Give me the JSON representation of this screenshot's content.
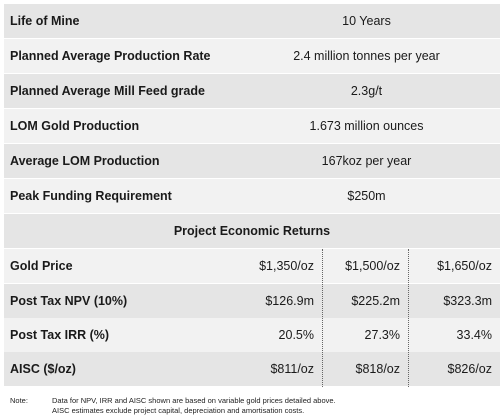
{
  "summary": {
    "rows": [
      [
        "Life of Mine",
        "10 Years"
      ],
      [
        "Planned Average Production Rate",
        "2.4 million tonnes per year"
      ],
      [
        "Planned Average Mill Feed grade",
        "2.3g/t"
      ],
      [
        "LOM Gold Production",
        "1.673 million ounces"
      ],
      [
        "Average LOM Production",
        "167koz per year"
      ],
      [
        "Peak Funding Requirement",
        "$250m"
      ]
    ]
  },
  "economics": {
    "title": "Project Economic Returns",
    "rows": [
      [
        "Gold Price",
        "$1,350/oz",
        "$1,500/oz",
        "$1,650/oz"
      ],
      [
        "Post Tax NPV (10%)",
        "$126.9m",
        "$225.2m",
        "$323.3m"
      ],
      [
        "Post Tax IRR (%)",
        "20.5%",
        "27.3%",
        "33.4%"
      ],
      [
        "AISC ($/oz)",
        "$811/oz",
        "$818/oz",
        "$826/oz"
      ]
    ]
  },
  "note": {
    "label": "Note:",
    "lines": [
      "Data for NPV, IRR and AISC shown are based on variable gold prices detailed above.",
      "AISC estimates exclude project capital, depreciation and amortisation costs."
    ]
  }
}
